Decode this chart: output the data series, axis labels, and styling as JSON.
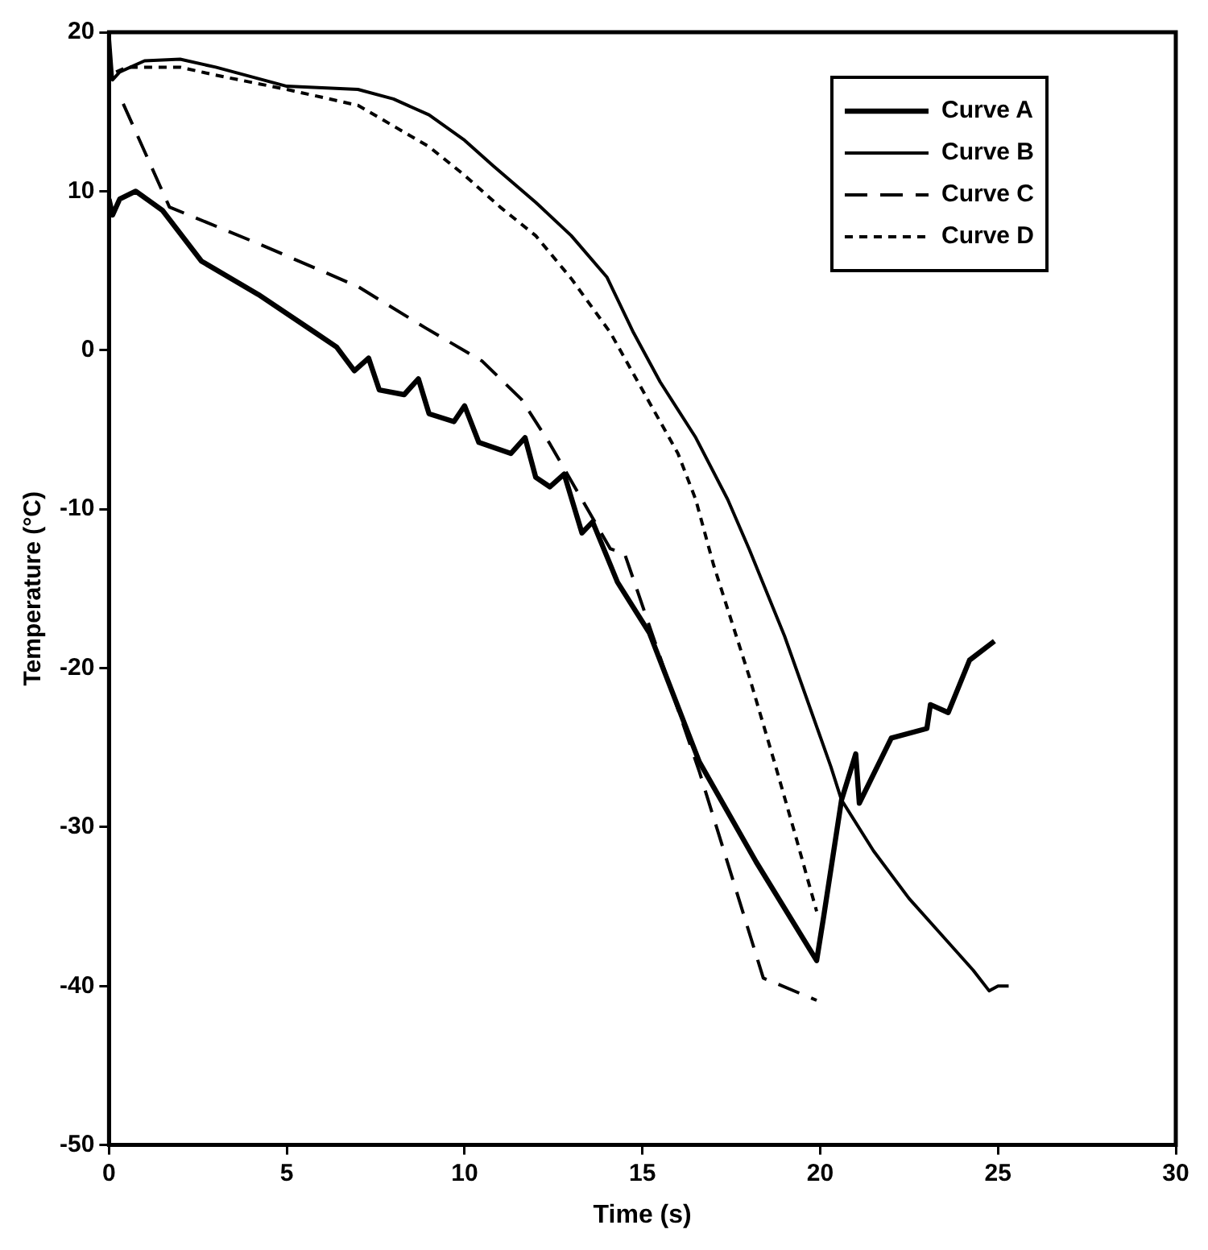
{
  "chart_data": {
    "type": "line",
    "xlabel": "Time (s)",
    "ylabel": "Temperature (°C)",
    "xlim": [
      0,
      30
    ],
    "xticks": [
      0,
      5,
      10,
      15,
      20,
      25,
      30
    ],
    "ylim": [
      -50,
      20
    ],
    "yticks": [
      -50,
      -40,
      -30,
      -20,
      -10,
      0,
      10,
      20
    ],
    "grid": false,
    "legend": "top right",
    "marker": "none",
    "series": [
      {
        "name": "Curve A",
        "color": "#000000",
        "line_style": "solid",
        "x": [
          0,
          0.1,
          0.3,
          0.75,
          1.5,
          2.6,
          4.2,
          5.8,
          6.4,
          6.9,
          7.3,
          7.6,
          8.3,
          8.7,
          9.0,
          9.7,
          10.0,
          10.4,
          11.3,
          11.7,
          12.0,
          12.4,
          12.8,
          13.3,
          13.6,
          14.3,
          15.2,
          16.6,
          18.2,
          19.9,
          20.1,
          20.6,
          21.0,
          21.1,
          22.0,
          23.0,
          23.1,
          23.6,
          24.2,
          24.9
        ],
        "values": [
          9.5,
          8.5,
          9.5,
          10,
          8.8,
          5.6,
          3.5,
          1.1,
          0.2,
          -1.3,
          -0.5,
          -2.5,
          -2.8,
          -1.8,
          -4,
          -4.5,
          -3.5,
          -5.8,
          -6.5,
          -5.5,
          -8,
          -8.6,
          -7.8,
          -11.5,
          -10.8,
          -14.6,
          -17.8,
          -25.9,
          -32.2,
          -38.4,
          -35.6,
          -28.3,
          -25.4,
          -28.5,
          -24.4,
          -23.8,
          -22.3,
          -22.8,
          -19.5,
          -18.3
        ]
      },
      {
        "name": "Curve B",
        "color": "#000000",
        "line_style": "solid",
        "x": [
          0,
          0.1,
          0.3,
          1,
          2,
          3,
          5,
          7,
          8,
          9,
          10,
          10.8,
          12,
          13,
          14,
          14.75,
          15.5,
          16.5,
          17.4,
          18,
          19,
          20.3,
          20.6,
          21.5,
          22.5,
          23.5,
          24.3,
          24.75,
          25,
          25.3
        ],
        "values": [
          20,
          17,
          17.5,
          18.2,
          18.3,
          17.8,
          16.6,
          16.4,
          15.8,
          14.8,
          13.2,
          11.6,
          9.3,
          7.2,
          4.6,
          1.1,
          -2,
          -5.5,
          -9.4,
          -12.5,
          -18,
          -26.2,
          -28.3,
          -31.5,
          -34.5,
          -37,
          -39,
          -40.3,
          -40,
          -40
        ]
      },
      {
        "name": "Curve C",
        "color": "#000000",
        "line_style": "dashed",
        "x": [
          0.4,
          1.7,
          4.2,
          7.0,
          8.9,
          10.5,
          11.6,
          12.4,
          14.1,
          14.5,
          16.6,
          18.4,
          19.9
        ],
        "values": [
          15.5,
          9.0,
          6.7,
          4.0,
          1.4,
          -0.7,
          -3.1,
          -5.9,
          -12.5,
          -12.8,
          -26.5,
          -39.5,
          -40.9
        ]
      },
      {
        "name": "Curve D",
        "color": "#000000",
        "line_style": "dotted",
        "x": [
          0.2,
          0.5,
          1,
          2,
          3,
          5,
          7,
          9,
          10,
          11,
          12,
          13,
          14.1,
          15,
          16,
          16.5,
          17,
          17.5,
          18,
          18.75,
          19.3,
          19.9
        ],
        "values": [
          17.5,
          17.8,
          17.8,
          17.8,
          17.3,
          16.4,
          15.4,
          12.8,
          11,
          9,
          7.2,
          4.5,
          1.1,
          -2.5,
          -6.5,
          -9.4,
          -13.5,
          -17,
          -20.5,
          -26.2,
          -30.5,
          -35.3
        ]
      }
    ]
  }
}
